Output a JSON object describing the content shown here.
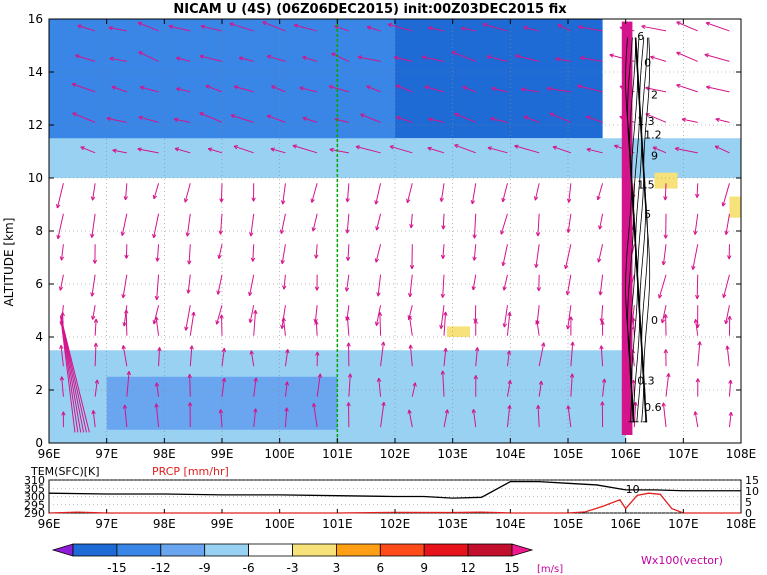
{
  "title": "NICAM U (4S) (06Z06DEC2015) init:00Z03DEC2015 fix",
  "chart_data": [
    {
      "type": "heatmap",
      "panel": "main",
      "ylabel": "ALTITUDE [km]",
      "xlabel": "",
      "xlim": [
        96,
        108
      ],
      "ylim": [
        0,
        16
      ],
      "x_ticks": [
        "96E",
        "97E",
        "98E",
        "99E",
        "100E",
        "101E",
        "102E",
        "103E",
        "104E",
        "105E",
        "106E",
        "107E",
        "108E"
      ],
      "y_ticks": [
        "0",
        "2",
        "4",
        "6",
        "8",
        "10",
        "12",
        "14",
        "16"
      ],
      "reference_line_x": 101,
      "reference_line_color": "#00aa00",
      "grid": true,
      "vector_color": "#d4148c",
      "contour_labels": [
        "6",
        "0",
        "2",
        "1.3",
        "1.2",
        "9",
        "1.5",
        "5",
        "0",
        "0.3",
        "0.6"
      ],
      "regions": [
        {
          "x0": 96,
          "x1": 102,
          "y0": 11,
          "y1": 16,
          "level": -9
        },
        {
          "x0": 102,
          "x1": 105.6,
          "y0": 11.5,
          "y1": 16,
          "level": -12
        },
        {
          "x0": 96,
          "x1": 108,
          "y0": 10,
          "y1": 11.5,
          "level": -3
        },
        {
          "x0": 96,
          "x1": 106,
          "y0": 0,
          "y1": 3.5,
          "level": -3
        },
        {
          "x0": 97,
          "x1": 101,
          "y0": 0.5,
          "y1": 2.5,
          "level": -6
        },
        {
          "x0": 107.8,
          "x1": 108,
          "y0": 8.5,
          "y1": 9.3,
          "level": 3
        },
        {
          "x0": 102.9,
          "x1": 103.3,
          "y0": 4,
          "y1": 4.4,
          "level": 3
        },
        {
          "x0": 106.5,
          "x1": 106.9,
          "y0": 9.6,
          "y1": 10.2,
          "level": 3
        }
      ]
    },
    {
      "type": "line",
      "panel": "surface",
      "left_label": "TEM(SFC)[K]",
      "right_label": "PRCP [mm/hr]",
      "left_ticks": [
        "310",
        "305",
        "300",
        "295",
        "290"
      ],
      "left_lim": [
        290,
        310
      ],
      "right_ticks": [
        "15",
        "10",
        "5",
        "0"
      ],
      "right_lim": [
        0,
        15
      ],
      "inline_label": "10",
      "x_ticks": [
        "96E",
        "97E",
        "98E",
        "99E",
        "100E",
        "101E",
        "102E",
        "103E",
        "104E",
        "105E",
        "106E",
        "107E",
        "108E"
      ],
      "series": [
        {
          "name": "TEM(SFC)[K]",
          "color": "#000000",
          "x": [
            96,
            97,
            98,
            99,
            100,
            101,
            102,
            102.5,
            103,
            103.5,
            104,
            104.5,
            105,
            105.5,
            106,
            106.5,
            107,
            107.5,
            108
          ],
          "y": [
            302,
            301.5,
            301.5,
            301,
            301,
            300.5,
            300,
            300,
            299,
            299.5,
            309,
            309,
            308,
            307,
            304,
            304,
            303.5,
            303.5,
            303.5
          ]
        },
        {
          "name": "PRCP [mm/hr]",
          "color": "#e02020",
          "x": [
            96,
            96.5,
            97,
            98,
            99,
            100,
            101,
            102,
            103,
            103.5,
            104,
            105,
            105.3,
            105.6,
            105.9,
            106,
            106.2,
            106.4,
            106.6,
            106.8,
            107,
            108
          ],
          "y": [
            0,
            0.4,
            0,
            0,
            0,
            0,
            0,
            0.3,
            0.2,
            0.4,
            0,
            0,
            0.5,
            3,
            6,
            2,
            8,
            9,
            8.5,
            2,
            0,
            0
          ]
        }
      ]
    }
  ],
  "colorbar": {
    "ticks": [
      "-15",
      "-12",
      "-9",
      "-6",
      "-3",
      "3",
      "6",
      "9",
      "12",
      "15"
    ],
    "unit": "[m/s]",
    "colors": [
      "#8f1cd9",
      "#1f6bd6",
      "#3a86e6",
      "#6aa6f0",
      "#99d1f2",
      "#ffffff",
      "#f7e27a",
      "#ff9f16",
      "#ff4a1a",
      "#e6141a",
      "#c20f2d",
      "#f2198e"
    ]
  },
  "vector_label": "Wx100(vector)"
}
